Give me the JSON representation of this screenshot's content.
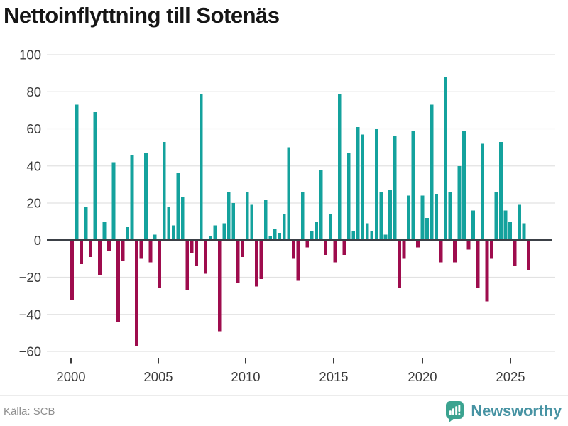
{
  "title": "Nettoinflyttning till Sotenäs",
  "source": "Källa: SCB",
  "brand": {
    "name": "Newsworthy",
    "icon": "bar-chart-speech-bubble-icon"
  },
  "colors": {
    "positive": "#14a29d",
    "negative": "#9e0c4d",
    "grid": "#e2e2e2",
    "zero_line": "#3b4046",
    "axis_text": "#3c3c3c",
    "title_text": "#161616",
    "source_text": "#8f8f8f",
    "brand_bubble": "#3ba390",
    "brand_text": "#4793a3",
    "background": "#ffffff"
  },
  "chart_data": {
    "type": "bar",
    "title": "Nettoinflyttning till Sotenäs",
    "series_name": "Nettoinflyttning per kvartal",
    "frequency": "quarterly",
    "start_period": "2000-Q1",
    "x_tick_labels": [
      "2000",
      "2005",
      "2010",
      "2015",
      "2020",
      "2025"
    ],
    "y_ticks": [
      100,
      80,
      60,
      40,
      20,
      0,
      -20,
      -40,
      -60
    ],
    "ylim": [
      -60,
      100
    ],
    "grid": "horizontal",
    "legend": "none",
    "values": [
      -32,
      73,
      -13,
      18,
      -9,
      69,
      -19,
      10,
      -6,
      42,
      -44,
      -11,
      7,
      46,
      -57,
      -10,
      47,
      -12,
      3,
      -26,
      53,
      18,
      8,
      36,
      23,
      -27,
      -7,
      -14,
      79,
      -18,
      2,
      8,
      -49,
      9,
      26,
      20,
      -23,
      -9,
      26,
      19,
      -25,
      -21,
      22,
      2,
      6,
      4,
      14,
      50,
      -10,
      -22,
      26,
      -4,
      5,
      10,
      38,
      -8,
      14,
      -12,
      79,
      -8,
      47,
      5,
      61,
      57,
      9,
      5,
      60,
      26,
      3,
      27,
      56,
      -26,
      -10,
      24,
      59,
      -4,
      24,
      12,
      73,
      25,
      -12,
      88,
      26,
      -12,
      40,
      59,
      -5,
      16,
      -26,
      52,
      -33,
      -10,
      26,
      53,
      16,
      10,
      -14,
      19,
      9,
      -16
    ]
  }
}
